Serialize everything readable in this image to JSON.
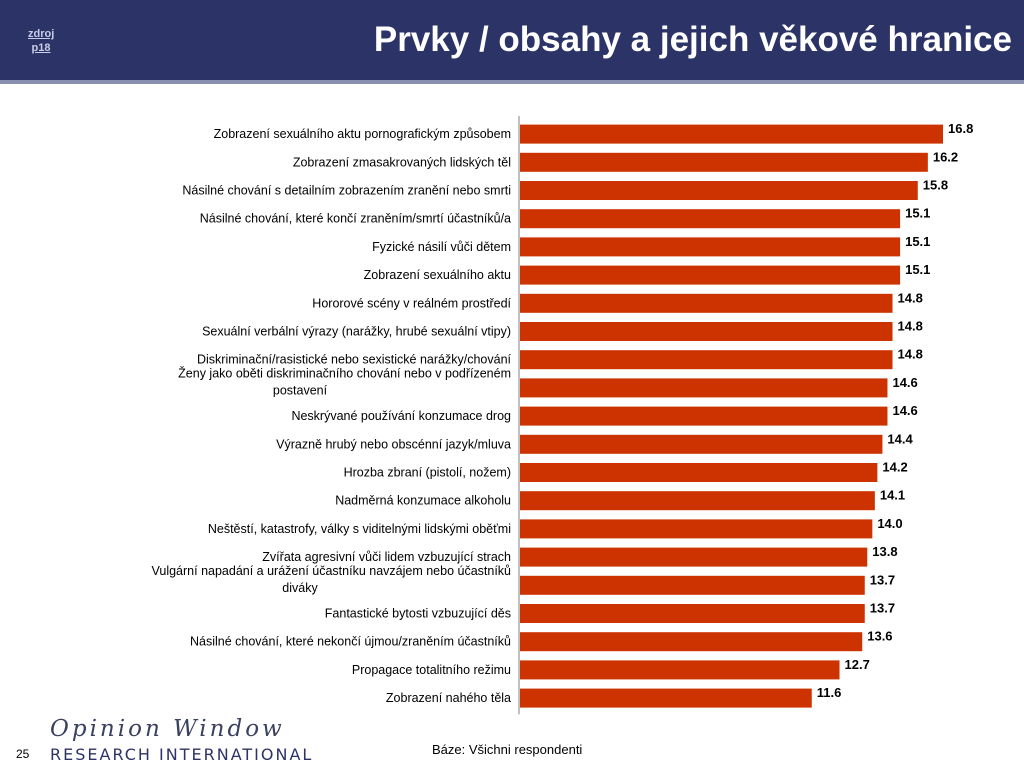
{
  "header": {
    "source_link_line1": "zdroj",
    "source_link_line2": "p18",
    "title": "Prvky / obsahy a jejich věkové hranice"
  },
  "footer": {
    "page_number": "25",
    "base_note": "Báze: Všichni respondenti",
    "brand_script": "Opinion Window",
    "brand_corp": "RESEARCH INTERNATIONAL"
  },
  "colors": {
    "header_bg": "#2c3366",
    "bar": "#cc3300",
    "axis": "#808080"
  },
  "chart_data": {
    "type": "bar",
    "orientation": "horizontal",
    "xlim": [
      0,
      16.8
    ],
    "grid": false,
    "legend": "none",
    "categories": [
      [
        "Zobrazení sexuálního aktu pornografickým způsobem"
      ],
      [
        "Zobrazení zmasakrovaných lidských těl"
      ],
      [
        "Násilné chování s detailním zobrazením zranění nebo smrti"
      ],
      [
        "Násilné chování, které končí zraněním/smrtí účastníků/a"
      ],
      [
        "Fyzické násilí vůči dětem"
      ],
      [
        "Zobrazení sexuálního aktu"
      ],
      [
        "Hororové scény v reálném prostředí"
      ],
      [
        "Sexuální verbální výrazy (narážky, hrubé sexuální vtipy)"
      ],
      [
        "Diskriminační/rasistické nebo sexistické narážky/chování"
      ],
      [
        "Ženy jako oběti diskriminačního chování nebo v podřízeném",
        "postavení"
      ],
      [
        "Neskrývané používání konzumace drog"
      ],
      [
        "Výrazně hrubý nebo obscénní jazyk/mluva"
      ],
      [
        "Hrozba zbraní (pistolí, nožem)"
      ],
      [
        "Nadměrná konzumace alkoholu"
      ],
      [
        "Neštěstí, katastrofy, války s viditelnými lidskými oběťmi"
      ],
      [
        "Zvířata agresivní vůči lidem vzbuzující strach"
      ],
      [
        "Vulgární napadání a urážení účastníku navzájem nebo účastníků",
        "diváky"
      ],
      [
        "Fantastické bytosti vzbuzující děs"
      ],
      [
        "Násilné chování, které nekončí újmou/zraněním účastníků"
      ],
      [
        "Propagace totalitního režimu"
      ],
      [
        "Zobrazení nahého těla"
      ]
    ],
    "values": [
      16.8,
      16.2,
      15.8,
      15.1,
      15.1,
      15.1,
      14.8,
      14.8,
      14.8,
      14.6,
      14.6,
      14.4,
      14.2,
      14.1,
      14.0,
      13.8,
      13.7,
      13.7,
      13.6,
      12.7,
      11.6
    ],
    "data_labels": [
      "16.8",
      "16.2",
      "15.8",
      "15.1",
      "15.1",
      "15.1",
      "14.8",
      "14.8",
      "14.8",
      "14.6",
      "14.6",
      "14.4",
      "14.2",
      "14.1",
      "14.0",
      "13.8",
      "13.7",
      "13.7",
      "13.6",
      "12.7",
      "11.6"
    ]
  }
}
